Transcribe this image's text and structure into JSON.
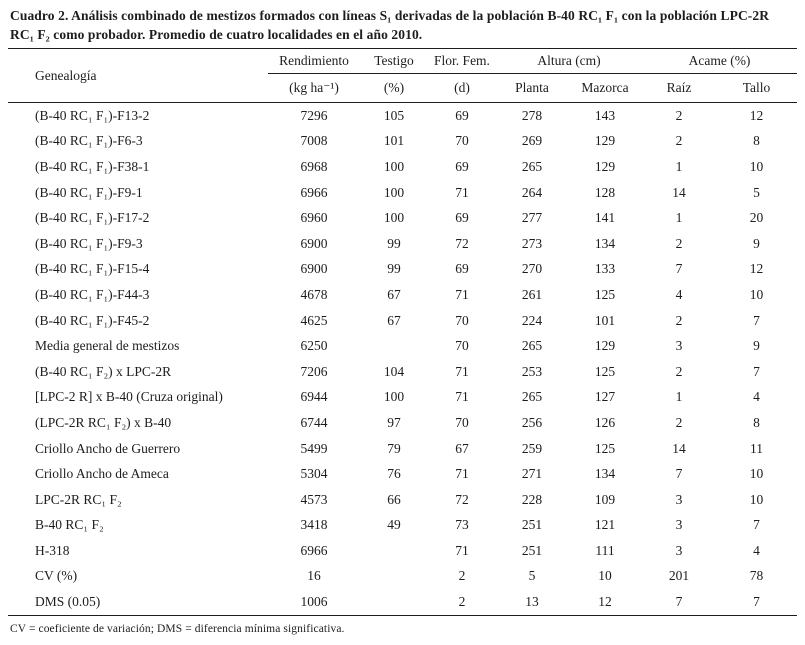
{
  "caption": "Cuadro 2. Análisis combinado de mestizos formados con líneas S₁ derivadas de la población B-40 RC₁ F₁ con la población LPC-2R RC₁ F₂ como probador. Promedio de cuatro localidades en el año 2010.",
  "table": {
    "header": {
      "genealogia": "Genealogía",
      "groups": [
        {
          "label": "Rendimiento",
          "unit": "(kg ha⁻¹)"
        },
        {
          "label": "Testigo",
          "unit": "(%)"
        },
        {
          "label": "Flor. Fem.",
          "unit": "(d)"
        },
        {
          "label": "Altura (cm)",
          "cols": [
            "Planta",
            "Mazorca"
          ]
        },
        {
          "label": "Acame (%)",
          "cols": [
            "Raíz",
            "Tallo"
          ]
        }
      ]
    },
    "rows": [
      {
        "genealogia": "(B-40 RC₁ F₁)-F13-2",
        "values": [
          "7296",
          "105",
          "69",
          "278",
          "143",
          "2",
          "12"
        ]
      },
      {
        "genealogia": "(B-40 RC₁ F₁)-F6-3",
        "values": [
          "7008",
          "101",
          "70",
          "269",
          "129",
          "2",
          "8"
        ]
      },
      {
        "genealogia": "(B-40 RC₁ F₁)-F38-1",
        "values": [
          "6968",
          "100",
          "69",
          "265",
          "129",
          "1",
          "10"
        ]
      },
      {
        "genealogia": "(B-40 RC₁ F₁)-F9-1",
        "values": [
          "6966",
          "100",
          "71",
          "264",
          "128",
          "14",
          "5"
        ]
      },
      {
        "genealogia": "(B-40 RC₁ F₁)-F17-2",
        "values": [
          "6960",
          "100",
          "69",
          "277",
          "141",
          "1",
          "20"
        ]
      },
      {
        "genealogia": "(B-40 RC₁ F₁)-F9-3",
        "values": [
          "6900",
          "99",
          "72",
          "273",
          "134",
          "2",
          "9"
        ]
      },
      {
        "genealogia": "(B-40 RC₁ F₁)-F15-4",
        "values": [
          "6900",
          "99",
          "69",
          "270",
          "133",
          "7",
          "12"
        ]
      },
      {
        "genealogia": "(B-40 RC₁ F₁)-F44-3",
        "values": [
          "4678",
          "67",
          "71",
          "261",
          "125",
          "4",
          "10"
        ]
      },
      {
        "genealogia": "(B-40 RC₁ F₁)-F45-2",
        "values": [
          "4625",
          "67",
          "70",
          "224",
          "101",
          "2",
          "7"
        ]
      },
      {
        "genealogia": "Media general de mestizos",
        "values": [
          "6250",
          "",
          "70",
          "265",
          "129",
          "3",
          "9"
        ]
      },
      {
        "genealogia": "(B-40 RC₁ F₂) x LPC-2R",
        "values": [
          "7206",
          "104",
          "71",
          "253",
          "125",
          "2",
          "7"
        ]
      },
      {
        "genealogia": "[LPC-2 R] x B-40 (Cruza original)",
        "values": [
          "6944",
          "100",
          "71",
          "265",
          "127",
          "1",
          "4"
        ]
      },
      {
        "genealogia": "(LPC-2R RC₁ F₂) x B-40",
        "values": [
          "6744",
          "97",
          "70",
          "256",
          "126",
          "2",
          "8"
        ]
      },
      {
        "genealogia": "Criollo Ancho de Guerrero",
        "values": [
          "5499",
          "79",
          "67",
          "259",
          "125",
          "14",
          "11"
        ]
      },
      {
        "genealogia": "Criollo Ancho de Ameca",
        "values": [
          "5304",
          "76",
          "71",
          "271",
          "134",
          "7",
          "10"
        ]
      },
      {
        "genealogia": "LPC-2R RC₁ F₂",
        "values": [
          "4573",
          "66",
          "72",
          "228",
          "109",
          "3",
          "10"
        ]
      },
      {
        "genealogia": "B-40 RC₁ F₂",
        "values": [
          "3418",
          "49",
          "73",
          "251",
          "121",
          "3",
          "7"
        ]
      },
      {
        "genealogia": "H-318",
        "values": [
          "6966",
          "",
          "71",
          "251",
          "111",
          "3",
          "4"
        ]
      },
      {
        "genealogia": "CV (%)",
        "values": [
          "16",
          "",
          "2",
          "5",
          "10",
          "201",
          "78"
        ]
      },
      {
        "genealogia": "DMS (0.05)",
        "values": [
          "1006",
          "",
          "2",
          "13",
          "12",
          "7",
          "7"
        ]
      }
    ],
    "footnote": "CV = coeficiente de variación; DMS = diferencia mínima significativa."
  }
}
